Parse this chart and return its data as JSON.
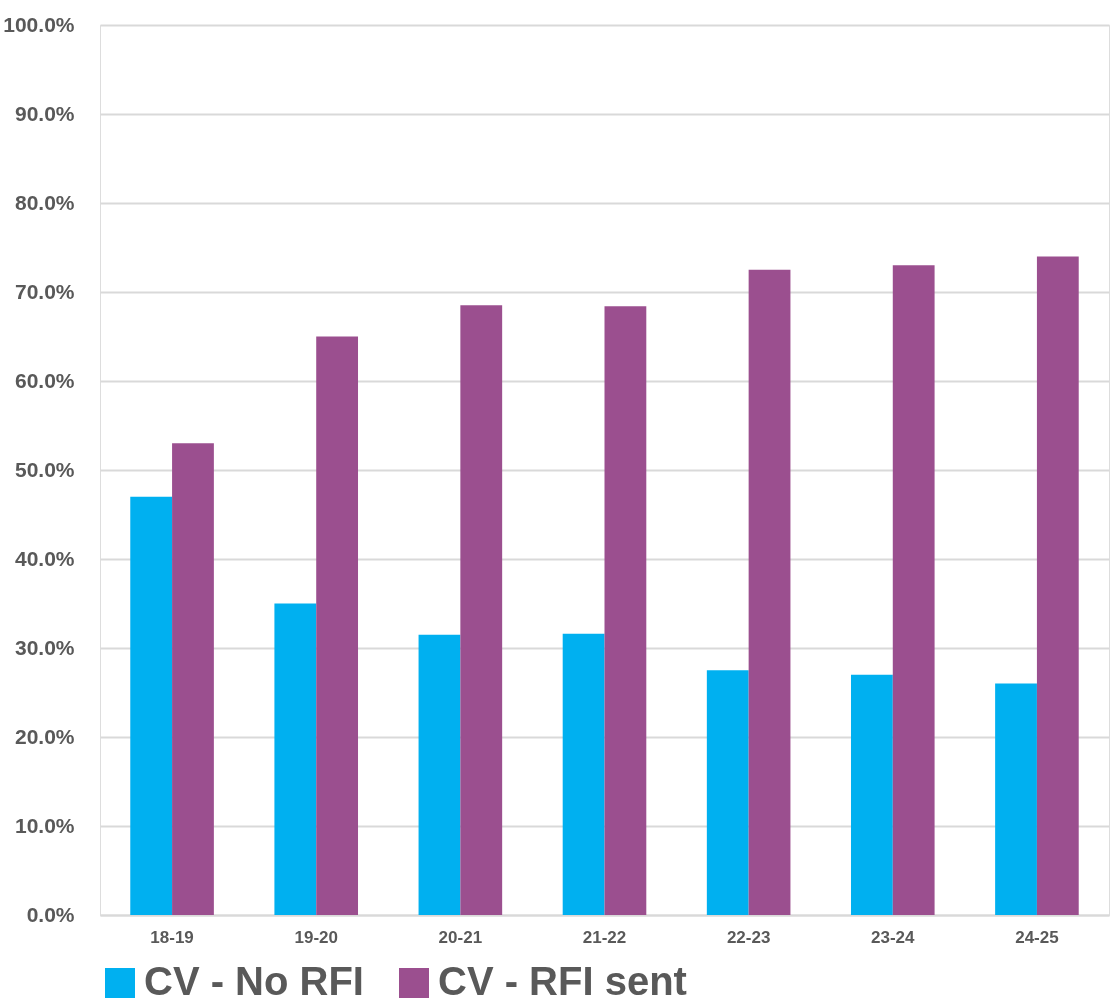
{
  "chart_data": {
    "type": "bar",
    "categories": [
      "18-19",
      "19-20",
      "20-21",
      "21-22",
      "22-23",
      "23-24",
      "24-25"
    ],
    "series": [
      {
        "name": "CV - No RFI",
        "color": "#00b0f0",
        "values": [
          47.0,
          35.0,
          31.5,
          31.6,
          27.5,
          27.0,
          26.0
        ]
      },
      {
        "name": "CV - RFI sent",
        "color": "#9b4f8f",
        "values": [
          53.0,
          65.0,
          68.5,
          68.4,
          72.5,
          73.0,
          74.0
        ]
      }
    ],
    "ylim": [
      0,
      100
    ],
    "yticks": [
      {
        "value": 0,
        "label": "0.0%"
      },
      {
        "value": 10,
        "label": "10.0%"
      },
      {
        "value": 20,
        "label": "20.0%"
      },
      {
        "value": 30,
        "label": "30.0%"
      },
      {
        "value": 40,
        "label": "40.0%"
      },
      {
        "value": 50,
        "label": "50.0%"
      },
      {
        "value": 60,
        "label": "60.0%"
      },
      {
        "value": 70,
        "label": "70.0%"
      },
      {
        "value": 80,
        "label": "80.0%"
      },
      {
        "value": 90,
        "label": "90.0%"
      },
      {
        "value": 100,
        "label": "100.0%"
      }
    ],
    "grid": "y",
    "legend": "bottom"
  }
}
